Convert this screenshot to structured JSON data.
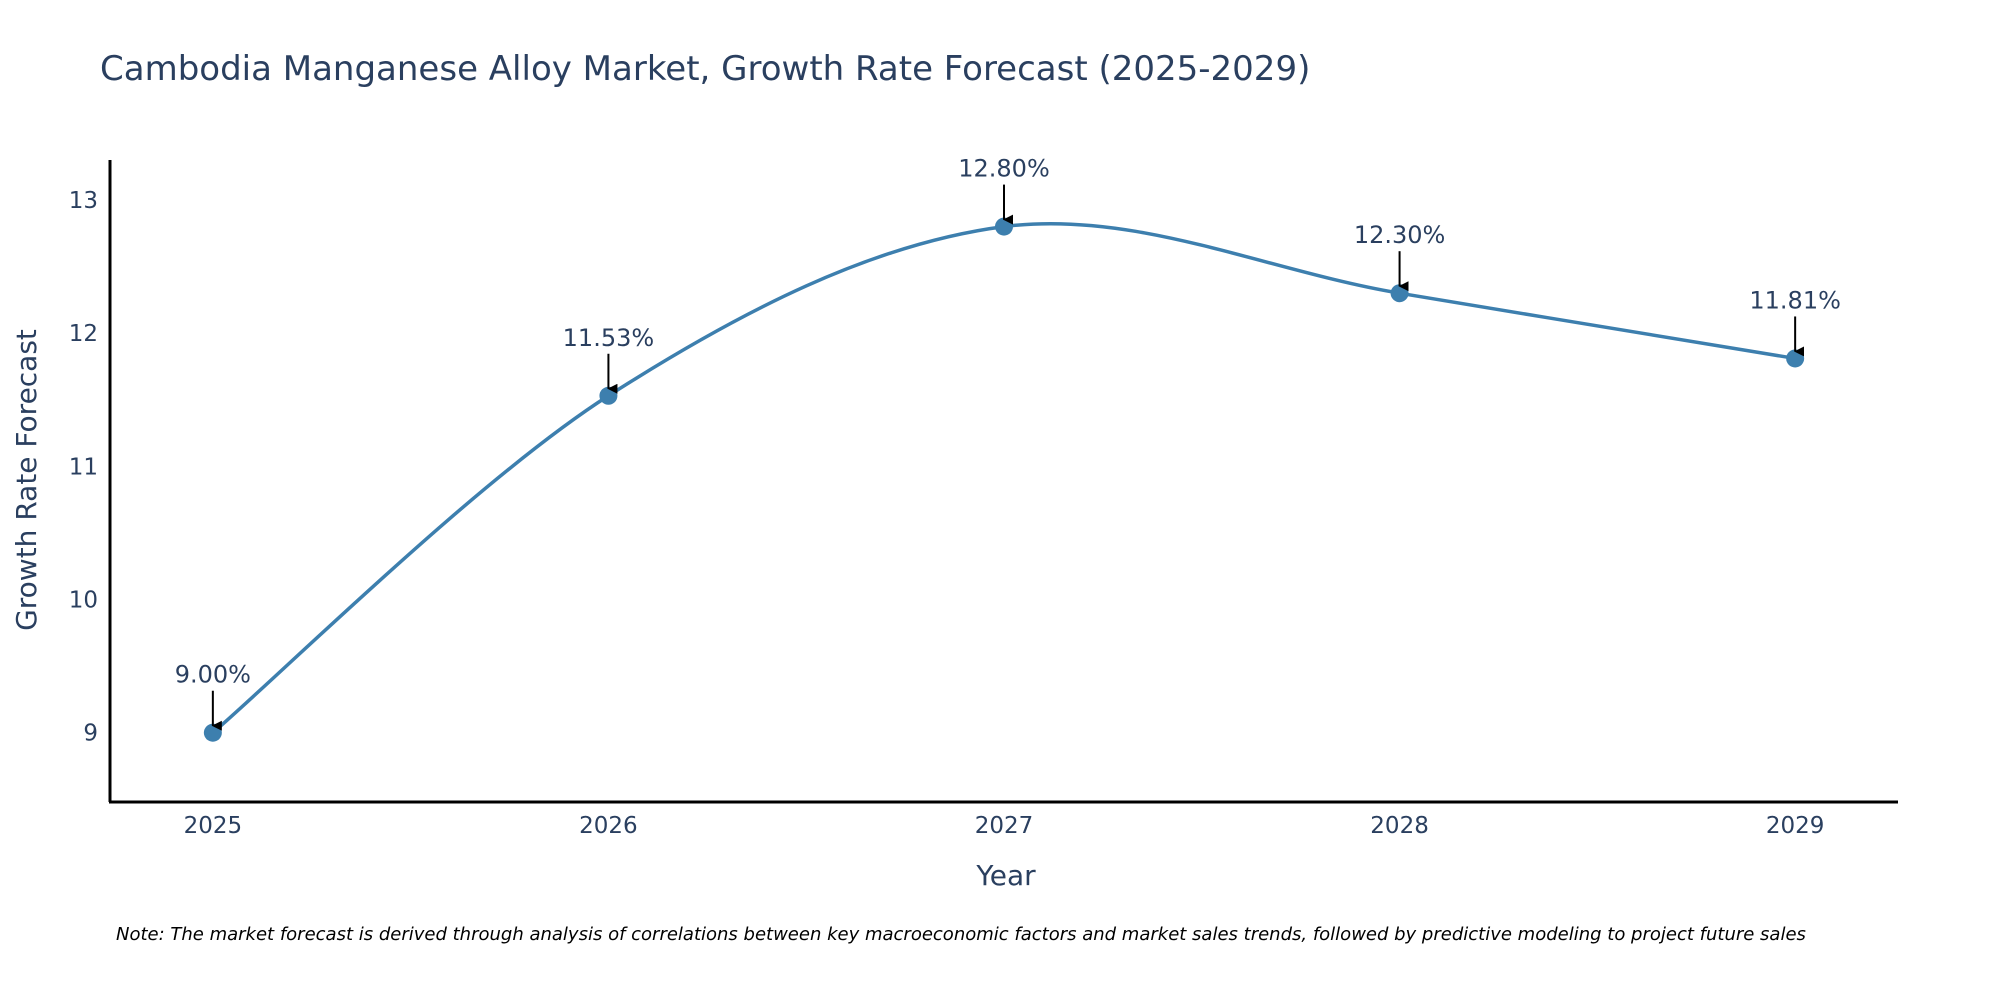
{
  "chart_data": {
    "type": "line",
    "title": "Cambodia Manganese Alloy Market, Growth Rate Forecast (2025-2029)",
    "xlabel": "Year",
    "ylabel": "Growth Rate Forecast",
    "categories": [
      "2025",
      "2026",
      "2027",
      "2028",
      "2029"
    ],
    "values": [
      9.0,
      11.53,
      12.8,
      12.3,
      11.81
    ],
    "data_labels": [
      "9.00%",
      "11.53%",
      "12.80%",
      "12.30%",
      "11.81%"
    ],
    "y_ticks": [
      9,
      10,
      11,
      12,
      13
    ],
    "ylim": [
      8.48,
      13.3
    ],
    "x_range": [
      -0.26,
      4.26
    ],
    "grid": false,
    "line_color": "#3d7fae",
    "marker_color": "#3d7fae",
    "note": "Note: The market forecast is derived through analysis of correlations between key macroeconomic factors and market sales trends, followed by predictive modeling to project future sales"
  }
}
